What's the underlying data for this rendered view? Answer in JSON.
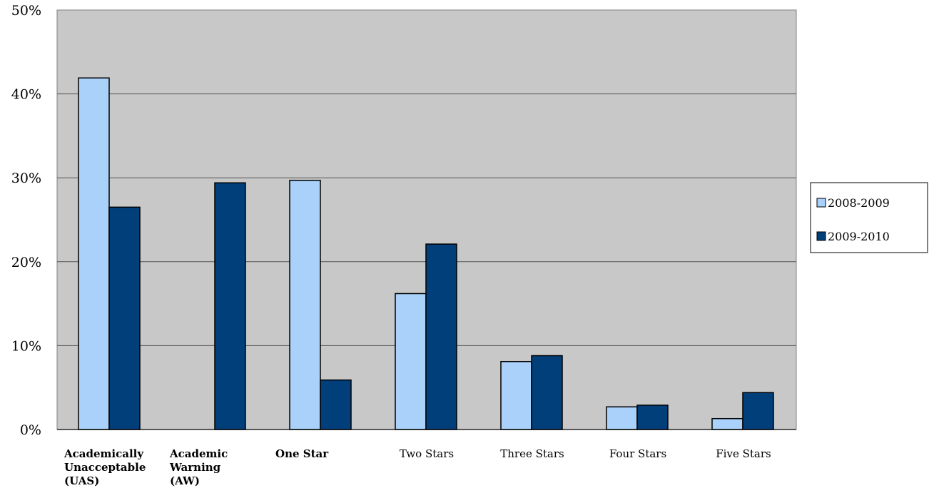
{
  "chart_data": {
    "type": "bar",
    "categories": [
      [
        "Academically",
        "Unacceptable",
        "(UAS)"
      ],
      [
        "Academic",
        "Warning",
        "(AW)"
      ],
      [
        "One Star"
      ],
      [
        "Two Stars"
      ],
      [
        "Three Stars"
      ],
      [
        "Four Stars"
      ],
      [
        "Five Stars"
      ]
    ],
    "bold_categories": [
      true,
      true,
      true,
      false,
      false,
      false,
      false
    ],
    "series": [
      {
        "name": "2008-2009",
        "color": "#a9d1fa",
        "values": [
          0.419,
          0.0,
          0.297,
          0.162,
          0.081,
          0.027,
          0.013
        ]
      },
      {
        "name": "2009-2010",
        "color": "#003f79",
        "values": [
          0.265,
          0.294,
          0.059,
          0.221,
          0.088,
          0.029,
          0.044
        ]
      }
    ],
    "ylim": [
      0,
      0.5
    ],
    "yticks": [
      0,
      0.1,
      0.2,
      0.3,
      0.4,
      0.5
    ],
    "ytick_labels": [
      "0%",
      "10%",
      "20%",
      "30%",
      "40%",
      "50%"
    ],
    "plot_background": "#c8c8c8",
    "gridlines": true,
    "legend_position": "right"
  }
}
